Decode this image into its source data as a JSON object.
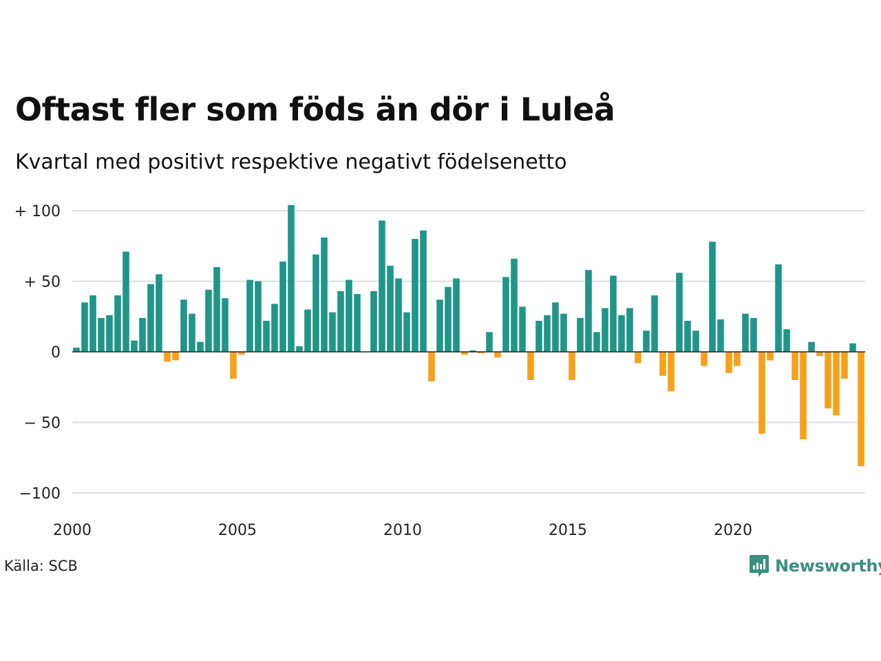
{
  "title": "Oftast fler som föds än dör i Luleå",
  "subtitle": "Kvartal med positivt respektive negativt födelsenetto",
  "source": "Källa: SCB",
  "brand": {
    "name": "Newsworthy",
    "icon": "newsworthy-logo-icon"
  },
  "colors": {
    "positive": "#1f9688",
    "negative": "#f7a11a",
    "grid": "#dddddd",
    "baseline": "#222222"
  },
  "chart_data": {
    "type": "bar",
    "title": "Oftast fler som föds än dör i Luleå",
    "subtitle": "Kvartal med positivt respektive negativt födelsenetto",
    "xlabel": "",
    "ylabel": "",
    "ylim": [
      -100,
      100
    ],
    "xlim": [
      2000,
      2024
    ],
    "grid": true,
    "legend": "none",
    "y_ticks": [
      {
        "value": 100,
        "label": "+ 100"
      },
      {
        "value": 50,
        "label": "+  50"
      },
      {
        "value": 0,
        "label": "0"
      },
      {
        "value": -50,
        "label": "− 50"
      },
      {
        "value": -100,
        "label": "−100"
      }
    ],
    "x_ticks": [
      {
        "value": 2000,
        "label": "2000"
      },
      {
        "value": 2005,
        "label": "2005"
      },
      {
        "value": 2010,
        "label": "2010"
      },
      {
        "value": 2015,
        "label": "2015"
      },
      {
        "value": 2020,
        "label": "2020"
      }
    ],
    "categories": [
      "2000 Q1",
      "2000 Q2",
      "2000 Q3",
      "2000 Q4",
      "2001 Q1",
      "2001 Q2",
      "2001 Q3",
      "2001 Q4",
      "2002 Q1",
      "2002 Q2",
      "2002 Q3",
      "2002 Q4",
      "2003 Q1",
      "2003 Q2",
      "2003 Q3",
      "2003 Q4",
      "2004 Q1",
      "2004 Q2",
      "2004 Q3",
      "2004 Q4",
      "2005 Q1",
      "2005 Q2",
      "2005 Q3",
      "2005 Q4",
      "2006 Q1",
      "2006 Q2",
      "2006 Q3",
      "2006 Q4",
      "2007 Q1",
      "2007 Q2",
      "2007 Q3",
      "2007 Q4",
      "2008 Q1",
      "2008 Q2",
      "2008 Q3",
      "2008 Q4",
      "2009 Q1",
      "2009 Q2",
      "2009 Q3",
      "2009 Q4",
      "2010 Q1",
      "2010 Q2",
      "2010 Q3",
      "2010 Q4",
      "2011 Q1",
      "2011 Q2",
      "2011 Q3",
      "2011 Q4",
      "2012 Q1",
      "2012 Q2",
      "2012 Q3",
      "2012 Q4",
      "2013 Q1",
      "2013 Q2",
      "2013 Q3",
      "2013 Q4",
      "2014 Q1",
      "2014 Q2",
      "2014 Q3",
      "2014 Q4",
      "2015 Q1",
      "2015 Q2",
      "2015 Q3",
      "2015 Q4",
      "2016 Q1",
      "2016 Q2",
      "2016 Q3",
      "2016 Q4",
      "2017 Q1",
      "2017 Q2",
      "2017 Q3",
      "2017 Q4",
      "2018 Q1",
      "2018 Q2",
      "2018 Q3",
      "2018 Q4",
      "2019 Q1",
      "2019 Q2",
      "2019 Q3",
      "2019 Q4",
      "2020 Q1",
      "2020 Q2",
      "2020 Q3",
      "2020 Q4",
      "2021 Q1",
      "2021 Q2",
      "2021 Q3",
      "2021 Q4",
      "2022 Q1",
      "2022 Q2",
      "2022 Q3",
      "2022 Q4",
      "2023 Q1",
      "2023 Q2",
      "2023 Q3",
      "2023 Q4"
    ],
    "values": [
      3,
      35,
      40,
      24,
      26,
      40,
      71,
      8,
      24,
      48,
      55,
      -7,
      -6,
      37,
      27,
      7,
      44,
      60,
      38,
      -19,
      -2,
      51,
      50,
      22,
      34,
      64,
      104,
      4,
      30,
      69,
      81,
      28,
      43,
      51,
      41,
      0,
      43,
      93,
      61,
      52,
      28,
      80,
      86,
      -21,
      37,
      46,
      52,
      -2,
      1,
      -1,
      14,
      -4,
      53,
      66,
      32,
      -20,
      22,
      26,
      35,
      27,
      -20,
      24,
      58,
      14,
      31,
      54,
      26,
      31,
      -8,
      15,
      40,
      -17,
      -28,
      56,
      22,
      15,
      -10,
      78,
      23,
      -15,
      -10,
      27,
      24,
      -58,
      -6,
      62,
      16,
      -20,
      -62,
      7,
      -3,
      -40,
      -45,
      -19,
      6,
      -81
    ]
  }
}
